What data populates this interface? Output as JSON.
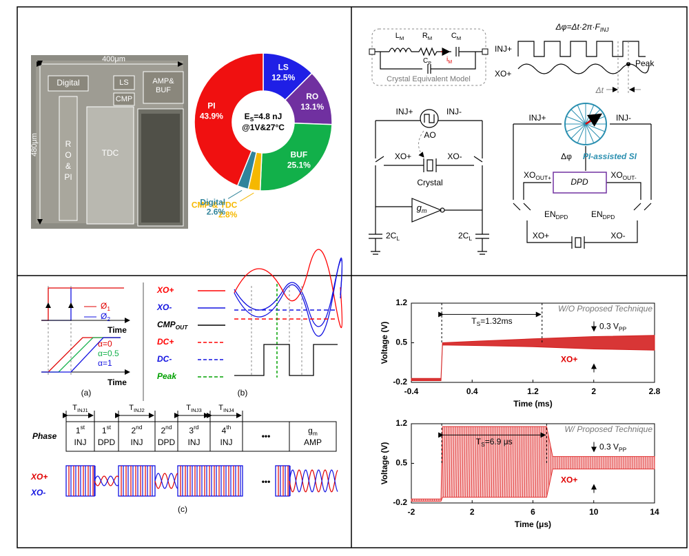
{
  "die_photo": {
    "width_label": "400μm",
    "height_label": "480μm",
    "blocks": {
      "digital": "Digital",
      "ls": "LS",
      "cmp": "CMP",
      "amp_buf": [
        "AMP&",
        "BUF"
      ],
      "ro_pi": [
        "R",
        "O",
        "&",
        "PI"
      ],
      "tdc": "TDC"
    }
  },
  "chart_data": [
    {
      "type": "pie",
      "categories": [
        "LS",
        "RO",
        "BUF",
        "CMP & TDC",
        "Digital",
        "PI"
      ],
      "values": [
        12.5,
        13.1,
        25.1,
        2.8,
        2.6,
        43.9
      ],
      "value_labels": [
        "12.5%",
        "13.1%",
        "25.1%",
        "2.8%",
        "2.6%",
        "43.9%"
      ],
      "colors": [
        "#1f1fe6",
        "#7030a0",
        "#12b04a",
        "#f5b800",
        "#31849b",
        "#f01010"
      ],
      "donut": true,
      "center_label": [
        {
          "base": "E",
          "sub": "S",
          "tail": "=4.8 nJ"
        },
        "@1V&27°C"
      ]
    },
    {
      "type": "line",
      "xlabel": "Time (ms)",
      "ylabel": "Voltage (V)",
      "xlim": [
        -0.4,
        2.8
      ],
      "xticks": [
        -0.4,
        0.4,
        1.2,
        2,
        2.8
      ],
      "ylim": [
        -0.2,
        1.2
      ],
      "yticks": [
        -0.2,
        0.5,
        1.2
      ],
      "series": [
        {
          "color": "#d42020",
          "x": [
            -0.4,
            -0.01,
            0.01,
            0.5,
            1.2,
            2,
            2.8
          ],
          "upper": [
            -0.13,
            -0.13,
            0.5,
            0.53,
            0.57,
            0.61,
            0.63
          ],
          "lower": [
            -0.17,
            -0.17,
            0.46,
            0.45,
            0.43,
            0.39,
            0.37
          ]
        }
      ],
      "settling_time": 1.32,
      "annotations": {
        "settling": {
          "base": "T",
          "sub": "S",
          "tail": "=1.32ms"
        },
        "technique": "W/O Proposed Technique",
        "amplitude": {
          "base": "0.3 V",
          "sub": "PP"
        },
        "signal": "XO+"
      }
    },
    {
      "type": "line",
      "xlabel": "Time (μs)",
      "ylabel": "Voltage (V)",
      "xlim": [
        -2,
        14
      ],
      "xticks": [
        -2,
        2,
        6,
        10,
        14
      ],
      "ylim": [
        -0.2,
        1.2
      ],
      "yticks": [
        -0.2,
        0.5,
        1.2
      ],
      "series": [
        {
          "color": "#e03030",
          "pattern": "oscillation",
          "x": [
            -2,
            -0.05,
            0.05,
            6.9,
            7.3,
            14
          ],
          "upper": [
            -0.13,
            -0.13,
            1.15,
            1.15,
            0.62,
            0.62
          ],
          "lower": [
            -0.17,
            -0.17,
            -0.1,
            -0.1,
            0.4,
            0.4
          ]
        }
      ],
      "settling_time": 6.9,
      "annotations": {
        "settling": {
          "base": "T",
          "sub": "S",
          "tail": "=6.9 μs"
        },
        "technique": "W/ Proposed Technique",
        "amplitude": {
          "base": "0.3 V",
          "sub": "PP"
        },
        "signal": "XO+"
      }
    }
  ],
  "crystal_model": {
    "lm": {
      "base": "L",
      "sub": "M"
    },
    "rm": {
      "base": "R",
      "sub": "M"
    },
    "cm": {
      "base": "C",
      "sub": "M"
    },
    "im": {
      "base": "i",
      "sub": "M"
    },
    "cp": {
      "base": "C",
      "sub": "P"
    },
    "caption": "Crystal Equivalent Model"
  },
  "injection": {
    "formula": {
      "base": "Δφ=Δt·2π·F",
      "sub": "INJ"
    },
    "inj": "INJ+",
    "xo": "XO+",
    "peak": "Peak",
    "dt": "Δt"
  },
  "oscillator": {
    "inj_p": "INJ+",
    "inj_n": "INJ-",
    "ao": "AO",
    "xo_p": "XO+",
    "xo_n": "XO-",
    "crystal": "Crystal",
    "gm": {
      "base": "g",
      "sub": "m"
    },
    "cl_left": {
      "base": "2C",
      "sub": "L"
    },
    "cl_right": {
      "base": "2C",
      "sub": "L"
    }
  },
  "pi_si": {
    "inj_p": "INJ+",
    "inj_n": "INJ-",
    "dphi": "Δφ",
    "title": "PI-assisted SI",
    "xo_out_p": {
      "base": "XO",
      "sub": "OUT+"
    },
    "xo_out_n": {
      "base": "XO",
      "sub": "OUT-"
    },
    "dpd": "DPD",
    "en_left": {
      "base": "EN",
      "sub": "DPD"
    },
    "en_right": {
      "base": "EN",
      "sub": "DPD"
    },
    "xo_p": "XO+",
    "xo_n": "XO-"
  },
  "timing_a": {
    "phi1": {
      "base": "Ø",
      "sub": "1"
    },
    "phi2": {
      "base": "Ø",
      "sub": "2"
    },
    "time1": "Time",
    "alpha0": "α=0",
    "alpha05": "α=0.5",
    "alpha1": "α=1",
    "time2": "Time",
    "caption": "(a)"
  },
  "timing_b": {
    "legend": [
      {
        "label": "XO+",
        "color": "#ff0000",
        "dashed": false
      },
      {
        "label": "XO-",
        "color": "#1010e0",
        "dashed": false
      },
      {
        "label": {
          "base": "CMP",
          "sub": "OUT"
        },
        "color": "#000000",
        "dashed": false
      },
      {
        "label": "DC+",
        "color": "#ff0000",
        "dashed": true
      },
      {
        "label": "DC-",
        "color": "#1010e0",
        "dashed": true
      },
      {
        "label": "Peak",
        "color": "#00a000",
        "dashed": true
      }
    ],
    "caption": "(b)"
  },
  "phases": {
    "periods": [
      {
        "base": "T",
        "sub": "INJ1"
      },
      {
        "base": "T",
        "sub": "INJ2"
      },
      {
        "base": "T",
        "sub": "INJ3"
      },
      {
        "base": "T",
        "sub": "INJ4"
      }
    ],
    "row_label": "Phase",
    "cells": [
      [
        {
          "base": "1",
          "sup": "st"
        },
        "INJ"
      ],
      [
        {
          "base": "1",
          "sup": "st"
        },
        "DPD"
      ],
      [
        {
          "base": "2",
          "sup": "nd"
        },
        "INJ"
      ],
      [
        {
          "base": "2",
          "sup": "nd"
        },
        "DPD"
      ],
      [
        {
          "base": "3",
          "sup": "rd"
        },
        "INJ"
      ],
      [
        {
          "base": "4",
          "sup": "th"
        },
        "INJ"
      ],
      [
        "•••"
      ],
      [
        {
          "base": "g",
          "sub": "m"
        },
        "AMP"
      ]
    ],
    "xo_p": "XO+",
    "xo_n": "XO-",
    "ellipsis": "•••",
    "caption": "(c)"
  }
}
